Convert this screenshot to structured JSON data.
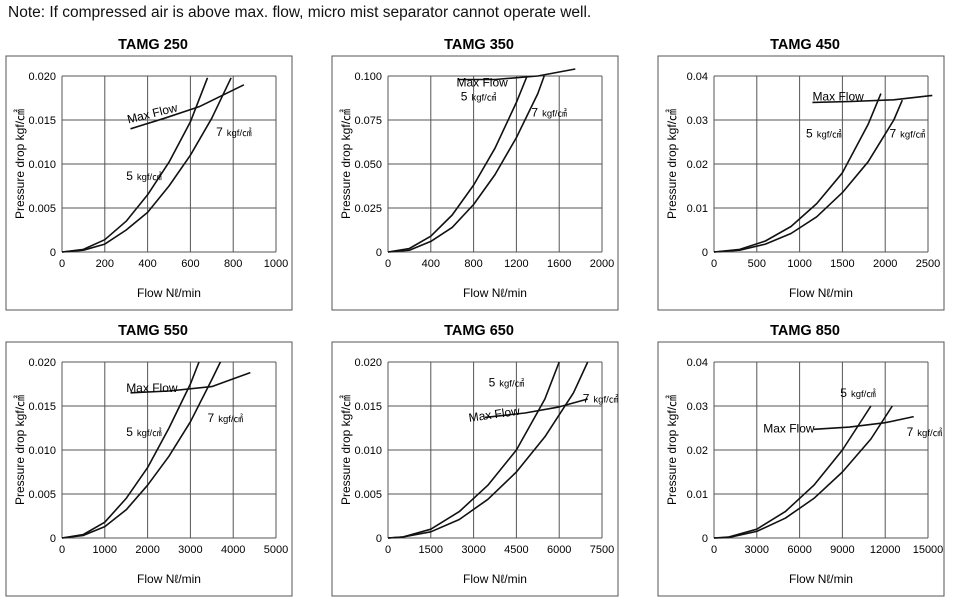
{
  "note": "Note: If compressed air is above max. flow, micro mist separator cannot operate well.",
  "chart_data": [
    {
      "type": "line",
      "title": "TAMG 250",
      "xlabel": "Flow Nℓ/min",
      "ylabel": "Pressure drop kgf/㎠",
      "xticks": [
        "0",
        "200",
        "400",
        "600",
        "800",
        "1000"
      ],
      "yticks": [
        "0",
        "0.005",
        "0.010",
        "0.015",
        "0.020"
      ],
      "xlim": [
        0,
        1000
      ],
      "ylim": [
        0,
        0.02
      ],
      "series": [
        {
          "name": "5 kgf/㎠",
          "x": [
            0,
            100,
            200,
            300,
            400,
            500,
            600,
            680
          ],
          "y": [
            0,
            0.0003,
            0.0014,
            0.0035,
            0.0065,
            0.0102,
            0.0148,
            0.0198
          ]
        },
        {
          "name": "7 kgf/㎠",
          "x": [
            0,
            100,
            200,
            300,
            400,
            500,
            600,
            700,
            790
          ],
          "y": [
            0,
            0.0002,
            0.0009,
            0.0025,
            0.0045,
            0.0075,
            0.011,
            0.0152,
            0.0198
          ]
        },
        {
          "name": "Max Flow",
          "x": [
            320,
            480,
            640,
            850
          ],
          "y": [
            0.014,
            0.0152,
            0.0165,
            0.019
          ]
        }
      ],
      "labels": {
        "max": "Max Flow",
        "low": "5",
        "high": "7",
        "unit": "kgf/㎠"
      }
    },
    {
      "type": "line",
      "title": "TAMG 350",
      "xlabel": "Flow Nℓ/min",
      "ylabel": "Pressure drop kgf/㎠",
      "xticks": [
        "0",
        "400",
        "800",
        "1200",
        "1600",
        "2000"
      ],
      "yticks": [
        "0",
        "0.025",
        "0.050",
        "0.075",
        "0.100"
      ],
      "xlim": [
        0,
        2000
      ],
      "ylim": [
        0,
        0.1
      ],
      "series": [
        {
          "name": "5 kgf/㎠",
          "x": [
            0,
            200,
            400,
            600,
            800,
            1000,
            1200,
            1300
          ],
          "y": [
            0,
            0.002,
            0.009,
            0.021,
            0.038,
            0.059,
            0.085,
            0.1
          ]
        },
        {
          "name": "7 kgf/㎠",
          "x": [
            0,
            200,
            400,
            600,
            800,
            1000,
            1200,
            1400,
            1460
          ],
          "y": [
            0,
            0.001,
            0.006,
            0.014,
            0.027,
            0.044,
            0.065,
            0.09,
            0.1
          ]
        },
        {
          "name": "Max Flow",
          "x": [
            650,
            1000,
            1400,
            1750
          ],
          "y": [
            0.098,
            0.098,
            0.1,
            0.104
          ]
        }
      ],
      "labels": {
        "max": "Max Flow",
        "low": "5",
        "high": "7",
        "unit": "kgf/㎠"
      }
    },
    {
      "type": "line",
      "title": "TAMG 450",
      "xlabel": "Flow Nℓ/min",
      "ylabel": "Pressure drop kgf/㎠",
      "xticks": [
        "0",
        "500",
        "1000",
        "1500",
        "2000",
        "2500"
      ],
      "yticks": [
        "0",
        "0.01",
        "0.02",
        "0.03",
        "0.04"
      ],
      "xlim": [
        0,
        2500
      ],
      "ylim": [
        0,
        0.04
      ],
      "series": [
        {
          "name": "5 kgf/㎠",
          "x": [
            0,
            300,
            600,
            900,
            1200,
            1500,
            1800,
            1950
          ],
          "y": [
            0,
            0.0006,
            0.0025,
            0.0058,
            0.011,
            0.018,
            0.029,
            0.036
          ]
        },
        {
          "name": "7 kgf/㎠",
          "x": [
            0,
            300,
            600,
            900,
            1200,
            1500,
            1800,
            2100,
            2200
          ],
          "y": [
            0,
            0.0004,
            0.0018,
            0.0042,
            0.008,
            0.0135,
            0.0205,
            0.03,
            0.0345
          ]
        },
        {
          "name": "Max Flow",
          "x": [
            1150,
            1600,
            2100,
            2550
          ],
          "y": [
            0.034,
            0.0342,
            0.0346,
            0.0356
          ]
        }
      ],
      "labels": {
        "max": "Max Flow",
        "low": "5",
        "high": "7",
        "unit": "kgf/㎠"
      }
    },
    {
      "type": "line",
      "title": "TAMG 550",
      "xlabel": "Flow Nℓ/min",
      "ylabel": "Pressure drop kgf/㎠",
      "xticks": [
        "0",
        "1000",
        "2000",
        "3000",
        "4000",
        "5000"
      ],
      "yticks": [
        "0",
        "0.005",
        "0.010",
        "0.015",
        "0.020"
      ],
      "xlim": [
        0,
        5000
      ],
      "ylim": [
        0,
        0.02
      ],
      "series": [
        {
          "name": "5 kgf/㎠",
          "x": [
            0,
            500,
            1000,
            1500,
            2000,
            2500,
            3000,
            3200
          ],
          "y": [
            0,
            0.0004,
            0.0018,
            0.0045,
            0.008,
            0.0125,
            0.0175,
            0.02
          ]
        },
        {
          "name": "7 kgf/㎠",
          "x": [
            0,
            500,
            1000,
            1500,
            2000,
            2500,
            3000,
            3500,
            3700
          ],
          "y": [
            0,
            0.0003,
            0.0013,
            0.0032,
            0.006,
            0.0093,
            0.0132,
            0.018,
            0.02
          ]
        },
        {
          "name": "Max Flow",
          "x": [
            1600,
            2500,
            3500,
            4400
          ],
          "y": [
            0.0165,
            0.0167,
            0.0172,
            0.0188
          ]
        }
      ],
      "labels": {
        "max": "Max Flow",
        "low": "5",
        "high": "7",
        "unit": "kgf/㎠"
      }
    },
    {
      "type": "line",
      "title": "TAMG 650",
      "xlabel": "Flow Nℓ/min",
      "ylabel": "Pressure drop kgf/㎠",
      "xticks": [
        "0",
        "1500",
        "3000",
        "4500",
        "6000",
        "7500"
      ],
      "yticks": [
        "0",
        "0.005",
        "0.010",
        "0.015",
        "0.020"
      ],
      "xlim": [
        0,
        7500
      ],
      "ylim": [
        0,
        0.02
      ],
      "series": [
        {
          "name": "5 kgf/㎠",
          "x": [
            0,
            500,
            1500,
            2500,
            3500,
            4500,
            5500,
            6000
          ],
          "y": [
            0,
            0.0001,
            0.001,
            0.003,
            0.006,
            0.01,
            0.0158,
            0.02
          ]
        },
        {
          "name": "7 kgf/㎠",
          "x": [
            0,
            500,
            1500,
            2500,
            3500,
            4500,
            5500,
            6500,
            7000
          ],
          "y": [
            0,
            0.0001,
            0.0007,
            0.0021,
            0.0044,
            0.0075,
            0.0115,
            0.0165,
            0.02
          ]
        },
        {
          "name": "Max Flow",
          "x": [
            3400,
            4800,
            6000,
            7000
          ],
          "y": [
            0.0137,
            0.0142,
            0.0149,
            0.0158
          ]
        }
      ],
      "labels": {
        "max": "Max Flow",
        "low": "5",
        "high": "7",
        "unit": "kgf/㎠"
      }
    },
    {
      "type": "line",
      "title": "TAMG 850",
      "xlabel": "Flow Nℓ/min",
      "ylabel": "Pressure drop kgf/㎠",
      "xticks": [
        "0",
        "3000",
        "6000",
        "9000",
        "12000",
        "15000"
      ],
      "yticks": [
        "0",
        "0.01",
        "0.02",
        "0.03",
        "0.04"
      ],
      "xlim": [
        0,
        15000
      ],
      "ylim": [
        0,
        0.04
      ],
      "series": [
        {
          "name": "5 kgf/㎠",
          "x": [
            0,
            1000,
            3000,
            5000,
            7000,
            9000,
            10500,
            11000
          ],
          "y": [
            0,
            0.0002,
            0.002,
            0.006,
            0.012,
            0.02,
            0.0275,
            0.03
          ]
        },
        {
          "name": "7 kgf/㎠",
          "x": [
            0,
            1000,
            3000,
            5000,
            7000,
            9000,
            11000,
            12500
          ],
          "y": [
            0,
            0.0001,
            0.0015,
            0.0045,
            0.009,
            0.015,
            0.0225,
            0.03
          ]
        },
        {
          "name": "Max Flow",
          "x": [
            7000,
            9500,
            12000,
            14000
          ],
          "y": [
            0.0247,
            0.0252,
            0.0262,
            0.0276
          ]
        }
      ],
      "labels": {
        "max": "Max Flow",
        "low": "5",
        "high": "7",
        "unit": "kgf/㎠"
      }
    }
  ]
}
